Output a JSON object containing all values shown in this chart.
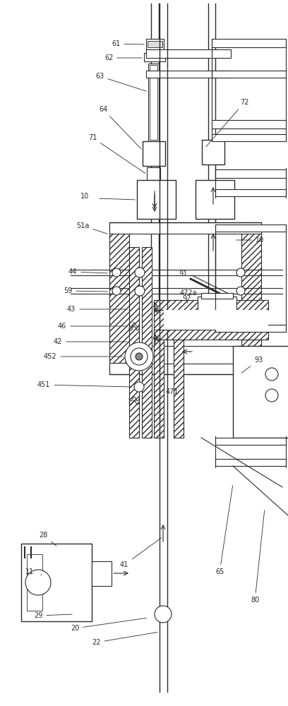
{
  "bg_color": "#ffffff",
  "lc": "#2a2a2a",
  "figsize": [
    4.08,
    10.0
  ],
  "dpi": 100,
  "fs": 7.0
}
